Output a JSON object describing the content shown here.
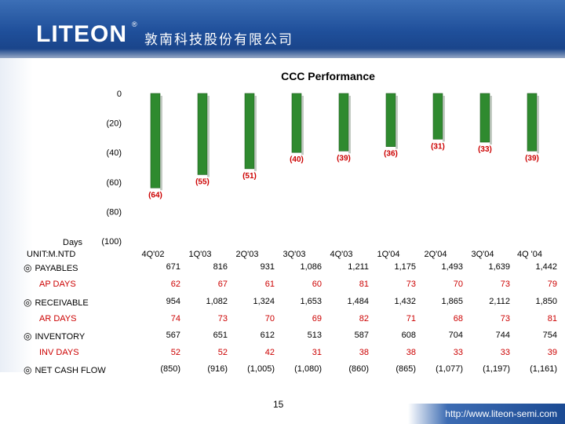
{
  "header": {
    "logo_text": "LITEON",
    "logo_mark": "®",
    "company_name": "敦南科技股份有限公司"
  },
  "footer": {
    "url": "http://www.liteon-semi.com",
    "page_number": "15"
  },
  "chart_data": {
    "type": "bar",
    "title": "CCC Performance",
    "ylabel": "Days",
    "ylim": [
      -100,
      0
    ],
    "yticks": [
      "0",
      "(20)",
      "(40)",
      "(60)",
      "(80)",
      "(100)"
    ],
    "categories": [
      "4Q'02",
      "1Q'03",
      "2Q'03",
      "3Q'03",
      "4Q'03",
      "1Q'04",
      "2Q'04",
      "3Q'04",
      "4Q '04"
    ],
    "values": [
      -64,
      -55,
      -51,
      -40,
      -39,
      -36,
      -31,
      -33,
      -39
    ],
    "value_labels": [
      "(64)",
      "(55)",
      "(51)",
      "(40)",
      "(39)",
      "(36)",
      "(31)",
      "(33)",
      "(39)"
    ],
    "bar_color": "#2f8a2f",
    "label_color": "#cc0000"
  },
  "table": {
    "unit_label": "UNIT:M.NTD",
    "bullet": "◎",
    "columns": [
      "4Q'02",
      "1Q'03",
      "2Q'03",
      "3Q'03",
      "4Q'03",
      "1Q'04",
      "2Q'04",
      "3Q'04",
      "4Q '04"
    ],
    "rows": [
      {
        "label": "PAYABLES",
        "bullet": true,
        "color": "#000000",
        "values": [
          "671",
          "816",
          "931",
          "1,086",
          "1,211",
          "1,175",
          "1,493",
          "1,639",
          "1,442"
        ]
      },
      {
        "label": "AP DAYS",
        "bullet": false,
        "color": "#cc0000",
        "values": [
          "62",
          "67",
          "61",
          "60",
          "81",
          "73",
          "70",
          "73",
          "79"
        ]
      },
      {
        "label": "RECEIVABLE",
        "bullet": true,
        "color": "#000000",
        "values": [
          "954",
          "1,082",
          "1,324",
          "1,653",
          "1,484",
          "1,432",
          "1,865",
          "2,112",
          "1,850"
        ]
      },
      {
        "label": "AR DAYS",
        "bullet": false,
        "color": "#cc0000",
        "values": [
          "74",
          "73",
          "70",
          "69",
          "82",
          "71",
          "68",
          "73",
          "81"
        ]
      },
      {
        "label": "INVENTORY",
        "bullet": true,
        "color": "#000000",
        "values": [
          "567",
          "651",
          "612",
          "513",
          "587",
          "608",
          "704",
          "744",
          "754"
        ]
      },
      {
        "label": "INV DAYS",
        "bullet": false,
        "color": "#cc0000",
        "values": [
          "52",
          "52",
          "42",
          "31",
          "38",
          "38",
          "33",
          "33",
          "39"
        ]
      },
      {
        "label": "NET CASH FLOW",
        "bullet": true,
        "color": "#000000",
        "values": [
          "(850)",
          "(916)",
          "(1,005)",
          "(1,080)",
          "(860)",
          "(865)",
          "(1,077)",
          "(1,197)",
          "(1,161)"
        ]
      }
    ]
  }
}
